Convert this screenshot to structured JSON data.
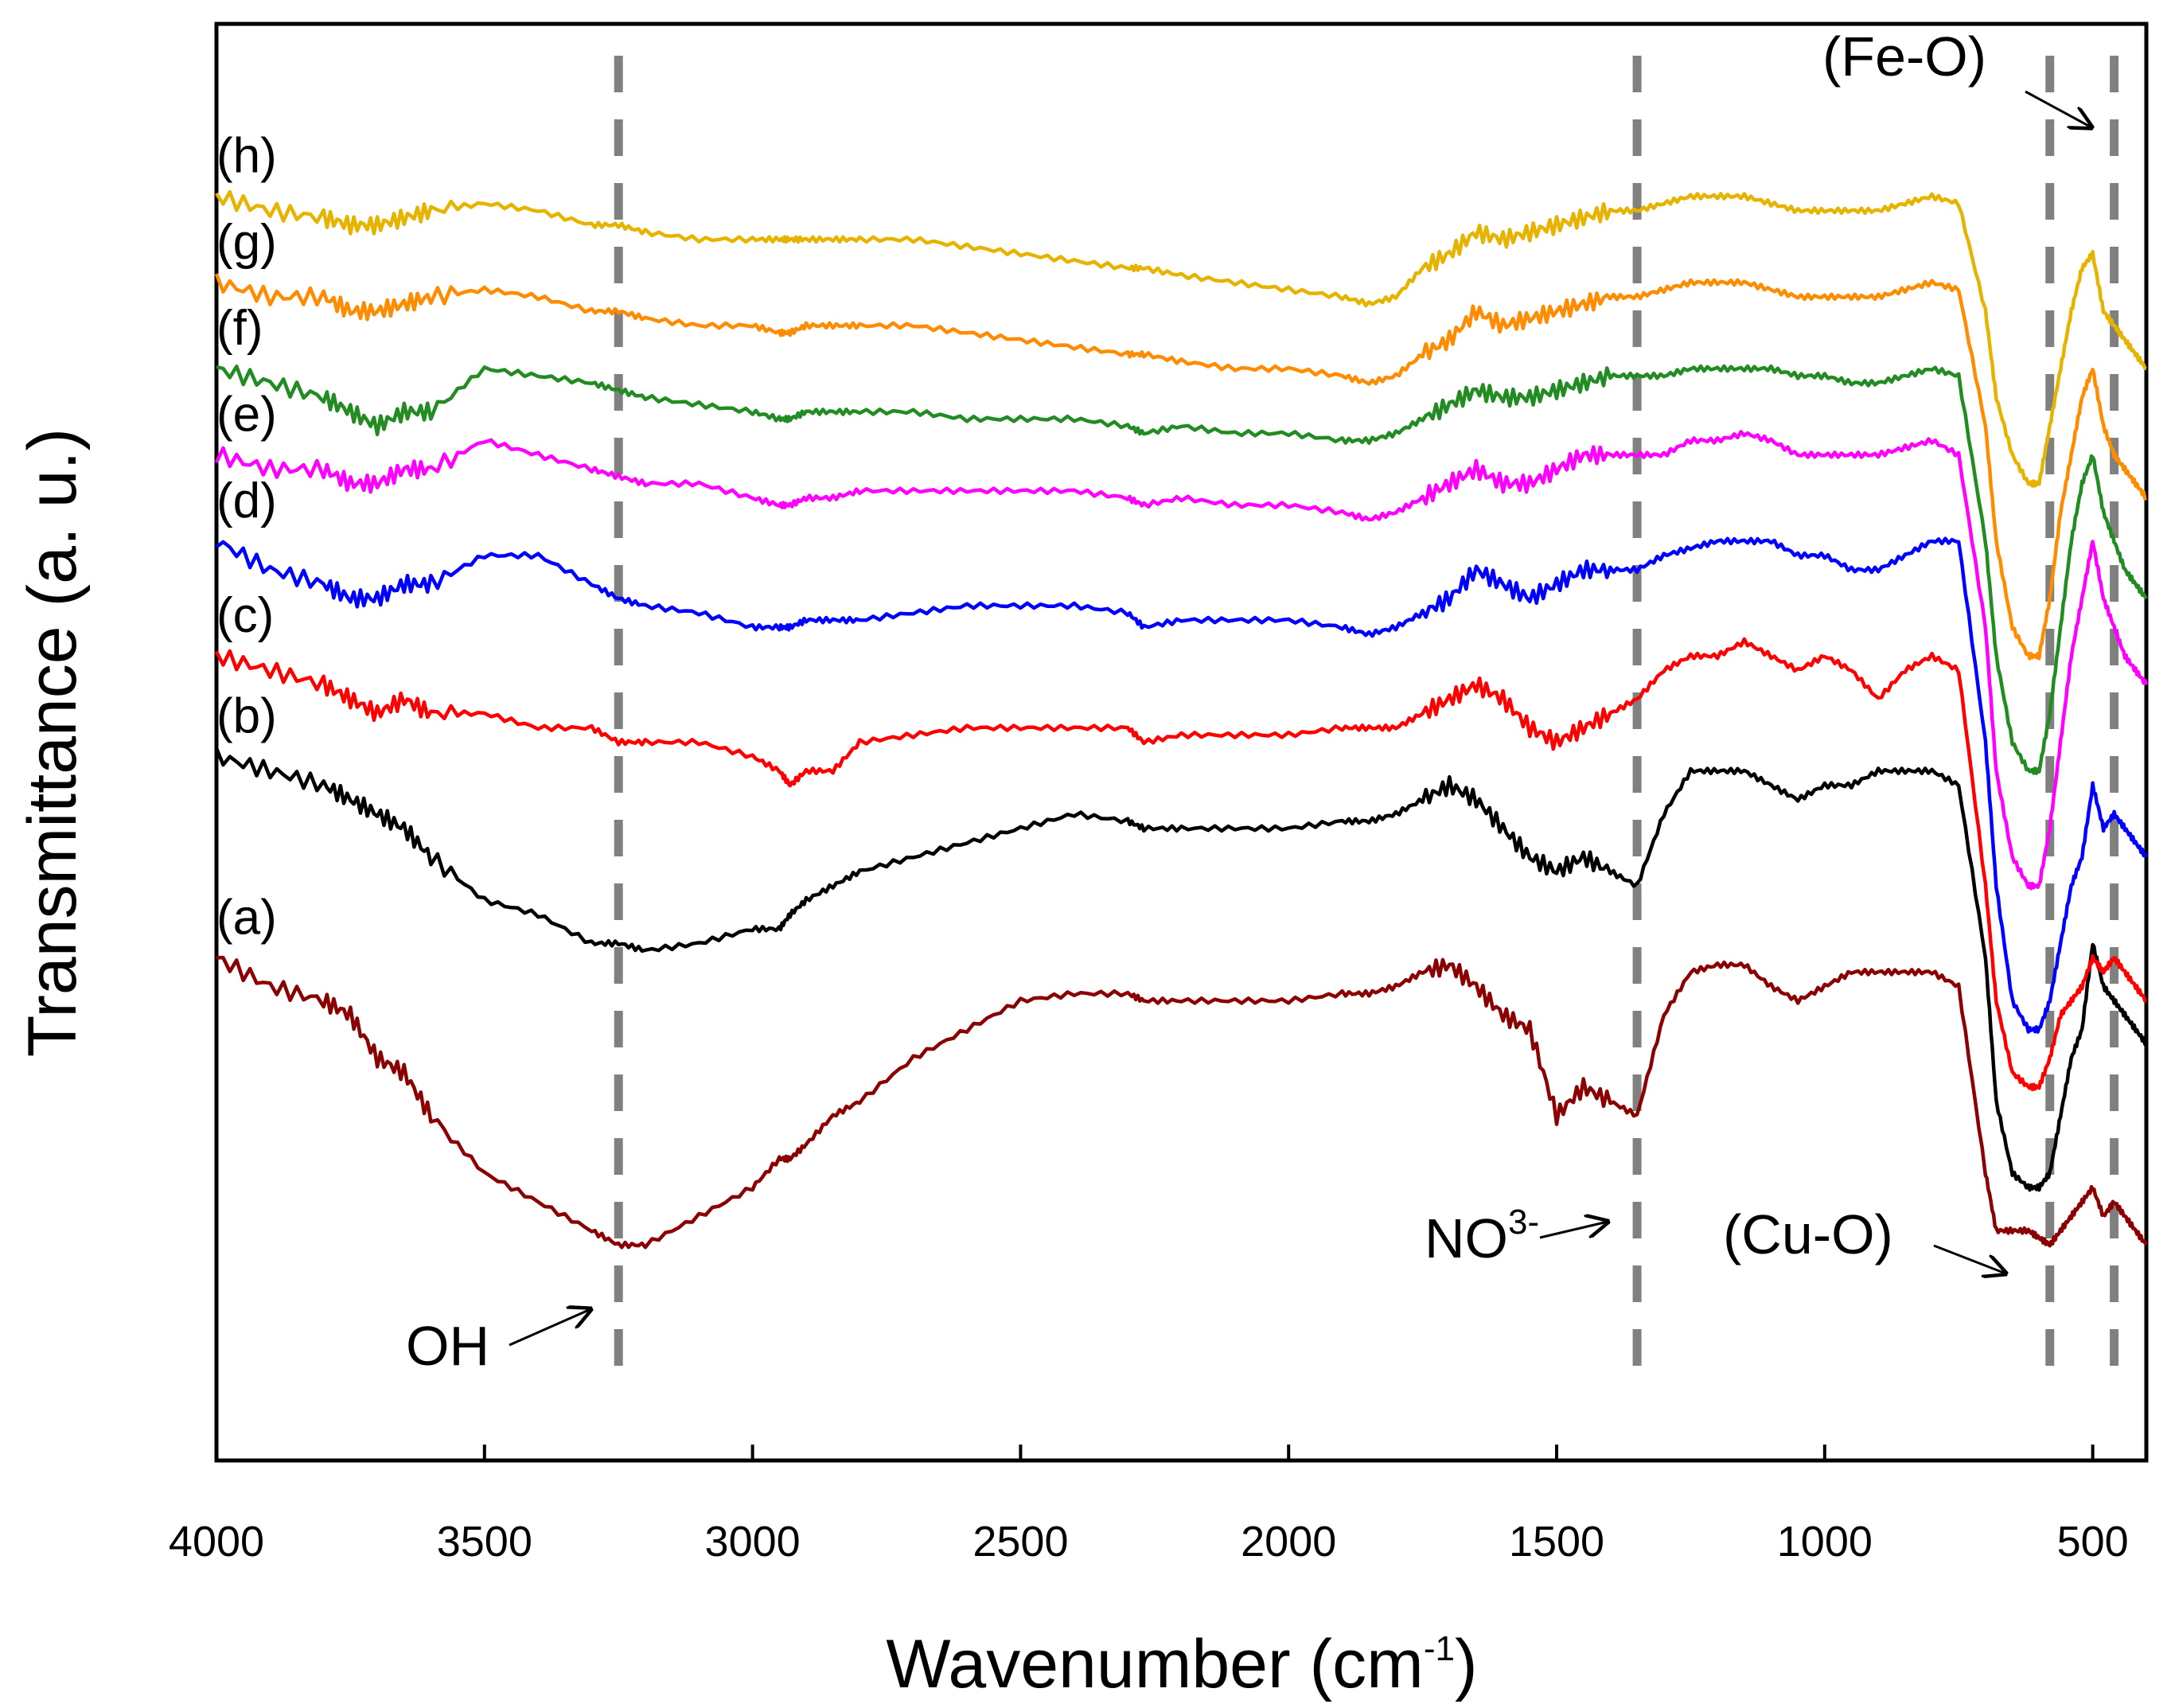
{
  "chart_data": {
    "type": "line",
    "title": "",
    "xlabel": "Wavenumber (cm",
    "xlabel_sup": "-1",
    "xlabel_end": ")",
    "ylabel": "Transmittance (a. u.)",
    "xlim": [
      4000,
      400
    ],
    "ylim": [
      0,
      1
    ],
    "x_reversed": true,
    "grid": false,
    "x_ticks": [
      4000,
      3500,
      3000,
      2500,
      2000,
      1500,
      1000,
      500
    ],
    "x_tick_labels": [
      "4000",
      "3500",
      "3000",
      "2500",
      "2000",
      "1500",
      "1000",
      "500"
    ],
    "x": [
      4000,
      3900,
      3800,
      3750,
      3700,
      3650,
      3600,
      3500,
      3400,
      3300,
      3250,
      3200,
      3100,
      3000,
      2950,
      2930,
      2900,
      2850,
      2800,
      2700,
      2600,
      2500,
      2400,
      2300,
      2270,
      2200,
      2100,
      2000,
      1900,
      1850,
      1800,
      1750,
      1700,
      1650,
      1600,
      1550,
      1500,
      1450,
      1400,
      1350,
      1300,
      1250,
      1200,
      1150,
      1100,
      1050,
      1000,
      950,
      900,
      850,
      800,
      750,
      700,
      680,
      650,
      620,
      600,
      580,
      560,
      540,
      520,
      500,
      480,
      460,
      440,
      420,
      400
    ],
    "series": [
      {
        "name": "(a)",
        "color": "#8b0000",
        "values": [
          0.35,
          0.33,
          0.32,
          0.31,
          0.28,
          0.27,
          0.24,
          0.2,
          0.18,
          0.16,
          0.15,
          0.15,
          0.17,
          0.19,
          0.21,
          0.21,
          0.22,
          0.24,
          0.25,
          0.28,
          0.3,
          0.32,
          0.325,
          0.325,
          0.32,
          0.32,
          0.32,
          0.32,
          0.325,
          0.325,
          0.33,
          0.34,
          0.345,
          0.33,
          0.31,
          0.3,
          0.24,
          0.26,
          0.25,
          0.24,
          0.31,
          0.34,
          0.345,
          0.345,
          0.33,
          0.32,
          0.33,
          0.34,
          0.34,
          0.34,
          0.34,
          0.33,
          0.2,
          0.16,
          0.16,
          0.16,
          0.155,
          0.15,
          0.16,
          0.17,
          0.18,
          0.19,
          0.17,
          0.18,
          0.17,
          0.16,
          0.15
        ]
      },
      {
        "name": "(b)",
        "color": "#000000",
        "values": [
          0.49,
          0.48,
          0.47,
          0.46,
          0.45,
          0.44,
          0.42,
          0.39,
          0.38,
          0.36,
          0.36,
          0.355,
          0.36,
          0.37,
          0.37,
          0.38,
          0.39,
          0.4,
          0.41,
          0.42,
          0.43,
          0.44,
          0.45,
          0.445,
          0.44,
          0.44,
          0.44,
          0.44,
          0.445,
          0.445,
          0.45,
          0.46,
          0.47,
          0.46,
          0.44,
          0.42,
          0.41,
          0.42,
          0.41,
          0.4,
          0.45,
          0.48,
          0.48,
          0.48,
          0.47,
          0.46,
          0.47,
          0.47,
          0.48,
          0.48,
          0.48,
          0.47,
          0.35,
          0.25,
          0.2,
          0.19,
          0.19,
          0.2,
          0.24,
          0.28,
          0.3,
          0.36,
          0.33,
          0.32,
          0.31,
          0.3,
          0.29
        ]
      },
      {
        "name": "(c)",
        "color": "#ff0000",
        "values": [
          0.56,
          0.55,
          0.54,
          0.53,
          0.52,
          0.53,
          0.52,
          0.52,
          0.51,
          0.51,
          0.5,
          0.5,
          0.5,
          0.49,
          0.48,
          0.47,
          0.48,
          0.48,
          0.5,
          0.505,
          0.51,
          0.51,
          0.51,
          0.51,
          0.5,
          0.505,
          0.505,
          0.505,
          0.51,
          0.51,
          0.51,
          0.52,
          0.53,
          0.54,
          0.53,
          0.51,
          0.5,
          0.51,
          0.52,
          0.53,
          0.55,
          0.56,
          0.56,
          0.57,
          0.56,
          0.55,
          0.56,
          0.55,
          0.53,
          0.55,
          0.56,
          0.55,
          0.4,
          0.32,
          0.27,
          0.26,
          0.26,
          0.28,
          0.31,
          0.32,
          0.33,
          0.35,
          0.34,
          0.35,
          0.34,
          0.33,
          0.32
        ]
      },
      {
        "name": "(d)",
        "color": "#0000ff",
        "values": [
          0.64,
          0.62,
          0.61,
          0.6,
          0.6,
          0.61,
          0.61,
          0.63,
          0.63,
          0.61,
          0.6,
          0.595,
          0.59,
          0.58,
          0.58,
          0.58,
          0.585,
          0.585,
          0.585,
          0.59,
          0.595,
          0.595,
          0.595,
          0.59,
          0.58,
          0.585,
          0.585,
          0.585,
          0.58,
          0.575,
          0.58,
          0.59,
          0.6,
          0.62,
          0.61,
          0.6,
          0.61,
          0.62,
          0.62,
          0.62,
          0.63,
          0.635,
          0.64,
          0.64,
          0.64,
          0.63,
          0.63,
          0.62,
          0.62,
          0.63,
          0.64,
          0.64,
          0.5,
          0.4,
          0.32,
          0.3,
          0.3,
          0.32,
          0.36,
          0.4,
          0.42,
          0.47,
          0.44,
          0.45,
          0.44,
          0.43,
          0.42
        ]
      },
      {
        "name": "(e)",
        "color": "#ff00ff",
        "values": [
          0.7,
          0.69,
          0.69,
          0.68,
          0.68,
          0.69,
          0.69,
          0.71,
          0.7,
          0.69,
          0.685,
          0.68,
          0.68,
          0.67,
          0.665,
          0.665,
          0.67,
          0.67,
          0.675,
          0.675,
          0.675,
          0.675,
          0.675,
          0.67,
          0.665,
          0.67,
          0.665,
          0.665,
          0.66,
          0.655,
          0.66,
          0.67,
          0.68,
          0.69,
          0.68,
          0.68,
          0.69,
          0.7,
          0.7,
          0.7,
          0.7,
          0.71,
          0.71,
          0.715,
          0.71,
          0.7,
          0.7,
          0.7,
          0.7,
          0.705,
          0.71,
          0.7,
          0.58,
          0.48,
          0.42,
          0.4,
          0.4,
          0.44,
          0.5,
          0.56,
          0.6,
          0.64,
          0.6,
          0.58,
          0.56,
          0.55,
          0.54
        ]
      },
      {
        "name": "(f)",
        "color": "#228b22",
        "values": [
          0.76,
          0.75,
          0.74,
          0.73,
          0.72,
          0.73,
          0.73,
          0.76,
          0.755,
          0.75,
          0.745,
          0.74,
          0.735,
          0.73,
          0.725,
          0.725,
          0.73,
          0.73,
          0.73,
          0.73,
          0.725,
          0.725,
          0.725,
          0.72,
          0.715,
          0.72,
          0.715,
          0.715,
          0.71,
          0.71,
          0.715,
          0.725,
          0.735,
          0.745,
          0.74,
          0.74,
          0.745,
          0.75,
          0.755,
          0.755,
          0.755,
          0.76,
          0.76,
          0.76,
          0.76,
          0.755,
          0.755,
          0.75,
          0.75,
          0.755,
          0.76,
          0.755,
          0.64,
          0.56,
          0.5,
          0.48,
          0.48,
          0.52,
          0.58,
          0.64,
          0.68,
          0.7,
          0.66,
          0.64,
          0.62,
          0.61,
          0.6
        ]
      },
      {
        "name": "(g)",
        "color": "#ff8c00",
        "values": [
          0.82,
          0.81,
          0.81,
          0.8,
          0.8,
          0.805,
          0.81,
          0.815,
          0.81,
          0.8,
          0.8,
          0.795,
          0.79,
          0.79,
          0.785,
          0.785,
          0.79,
          0.79,
          0.79,
          0.79,
          0.785,
          0.78,
          0.775,
          0.77,
          0.77,
          0.765,
          0.76,
          0.76,
          0.755,
          0.75,
          0.755,
          0.77,
          0.78,
          0.8,
          0.79,
          0.795,
          0.8,
          0.805,
          0.81,
          0.81,
          0.815,
          0.82,
          0.82,
          0.82,
          0.815,
          0.81,
          0.81,
          0.81,
          0.81,
          0.815,
          0.82,
          0.815,
          0.72,
          0.64,
          0.58,
          0.56,
          0.56,
          0.6,
          0.66,
          0.7,
          0.74,
          0.76,
          0.72,
          0.7,
          0.69,
          0.68,
          0.67
        ]
      },
      {
        "name": "(h)",
        "color": "#e6b400",
        "values": [
          0.88,
          0.87,
          0.865,
          0.86,
          0.86,
          0.865,
          0.87,
          0.875,
          0.87,
          0.86,
          0.86,
          0.855,
          0.85,
          0.85,
          0.85,
          0.85,
          0.85,
          0.85,
          0.85,
          0.85,
          0.845,
          0.84,
          0.835,
          0.83,
          0.83,
          0.825,
          0.82,
          0.815,
          0.81,
          0.805,
          0.81,
          0.83,
          0.84,
          0.855,
          0.85,
          0.855,
          0.86,
          0.865,
          0.87,
          0.87,
          0.875,
          0.88,
          0.88,
          0.88,
          0.875,
          0.87,
          0.87,
          0.87,
          0.87,
          0.875,
          0.88,
          0.875,
          0.8,
          0.74,
          0.7,
          0.68,
          0.68,
          0.72,
          0.76,
          0.8,
          0.83,
          0.84,
          0.8,
          0.79,
          0.78,
          0.77,
          0.76
        ]
      }
    ],
    "reference_lines": [
      {
        "x": 3250,
        "label": "OH",
        "color": "#808080"
      },
      {
        "x": 1350,
        "label": "NO",
        "label_sup": "3-",
        "color": "#808080"
      },
      {
        "x": 580,
        "label": "(Cu-O)",
        "color": "#808080"
      },
      {
        "x": 460,
        "label": "(Fe-O)",
        "color": "#808080"
      }
    ]
  }
}
